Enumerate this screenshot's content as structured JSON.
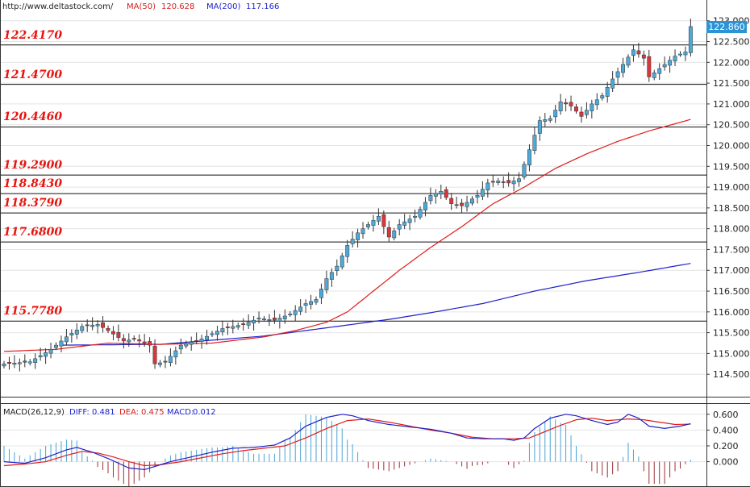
{
  "header": {
    "source": "http://www.deltastock.com/",
    "ma50_label": "MA(50)",
    "ma50_value": "120.628",
    "ma200_label": "MA(200)",
    "ma200_value": "117.166"
  },
  "macd_header": {
    "name": "MACD(26,12,9)",
    "diff_label": "DIFF:",
    "diff_value": "0.481",
    "dea_label": "DEA:",
    "dea_value": "0.475",
    "macd_label": "MACD:",
    "macd_value": "0.012"
  },
  "price_tag": "122.860",
  "colors": {
    "up": "#4ea9d8",
    "down": "#d9363b",
    "ma50": "#e01b1b",
    "ma200": "#1f22c8",
    "level_text": "#e8130f",
    "price_tag_bg": "#2b93d6"
  },
  "chart_data": [
    {
      "type": "candlestick",
      "title": "",
      "y_ticks": [
        "114.500",
        "115.000",
        "115.500",
        "116.000",
        "116.500",
        "117.000",
        "117.500",
        "118.000",
        "118.500",
        "119.000",
        "119.500",
        "120.000",
        "120.500",
        "121.000",
        "121.500",
        "122.000",
        "122.500",
        "123.000"
      ],
      "ylim": [
        114.0,
        123.15
      ],
      "levels": [
        {
          "value": 122.417,
          "label": "122.4170"
        },
        {
          "value": 121.47,
          "label": "121.4700"
        },
        {
          "value": 120.446,
          "label": "120.4460"
        },
        {
          "value": 119.29,
          "label": "119.2900"
        },
        {
          "value": 118.843,
          "label": "118.8430"
        },
        {
          "value": 118.379,
          "label": "118.3790"
        },
        {
          "value": 117.68,
          "label": "117.6800"
        },
        {
          "value": 115.778,
          "label": "115.7780"
        }
      ],
      "close_anchors": [
        [
          0,
          114.75
        ],
        [
          5,
          114.8
        ],
        [
          9,
          115.1
        ],
        [
          12,
          115.4
        ],
        [
          15,
          115.65
        ],
        [
          18,
          115.7
        ],
        [
          20,
          115.55
        ],
        [
          23,
          115.3
        ],
        [
          25,
          115.35
        ],
        [
          28,
          115.2
        ],
        [
          29,
          114.75
        ],
        [
          31,
          114.8
        ],
        [
          34,
          115.2
        ],
        [
          38,
          115.35
        ],
        [
          42,
          115.6
        ],
        [
          46,
          115.7
        ],
        [
          49,
          115.85
        ],
        [
          52,
          115.8
        ],
        [
          55,
          115.95
        ],
        [
          58,
          116.2
        ],
        [
          60,
          116.3
        ],
        [
          62,
          116.8
        ],
        [
          64,
          117.1
        ],
        [
          66,
          117.6
        ],
        [
          68,
          117.9
        ],
        [
          70,
          118.1
        ],
        [
          72,
          118.3
        ],
        [
          74,
          117.8
        ],
        [
          76,
          118.1
        ],
        [
          79,
          118.3
        ],
        [
          82,
          118.8
        ],
        [
          84,
          118.9
        ],
        [
          86,
          118.6
        ],
        [
          88,
          118.55
        ],
        [
          91,
          118.8
        ],
        [
          93,
          119.1
        ],
        [
          95,
          119.15
        ],
        [
          97,
          119.1
        ],
        [
          99,
          119.2
        ],
        [
          101,
          119.9
        ],
        [
          103,
          120.6
        ],
        [
          105,
          120.65
        ],
        [
          107,
          121.05
        ],
        [
          109,
          120.95
        ],
        [
          111,
          120.7
        ],
        [
          113,
          121.0
        ],
        [
          115,
          121.2
        ],
        [
          117,
          121.6
        ],
        [
          119,
          121.95
        ],
        [
          121,
          122.3
        ],
        [
          123,
          122.1
        ],
        [
          124,
          121.65
        ],
        [
          126,
          121.85
        ],
        [
          128,
          122.05
        ],
        [
          129,
          122.15
        ],
        [
          131,
          122.25
        ],
        [
          132,
          122.86
        ]
      ],
      "ma50_anchors": [
        [
          0,
          115.05
        ],
        [
          10,
          115.1
        ],
        [
          20,
          115.25
        ],
        [
          30,
          115.22
        ],
        [
          40,
          115.25
        ],
        [
          50,
          115.4
        ],
        [
          56,
          115.55
        ],
        [
          62,
          115.75
        ],
        [
          66,
          116.0
        ],
        [
          70,
          116.4
        ],
        [
          76,
          117.0
        ],
        [
          82,
          117.55
        ],
        [
          88,
          118.05
        ],
        [
          94,
          118.6
        ],
        [
          100,
          119.0
        ],
        [
          106,
          119.45
        ],
        [
          112,
          119.8
        ],
        [
          118,
          120.1
        ],
        [
          124,
          120.35
        ],
        [
          132,
          120.628
        ]
      ],
      "ma200_anchors": [
        [
          11,
          115.2
        ],
        [
          30,
          115.22
        ],
        [
          50,
          115.42
        ],
        [
          64,
          115.65
        ],
        [
          74,
          115.82
        ],
        [
          82,
          115.98
        ],
        [
          92,
          116.2
        ],
        [
          102,
          116.5
        ],
        [
          112,
          116.75
        ],
        [
          122,
          116.95
        ],
        [
          132,
          117.166
        ]
      ]
    },
    {
      "type": "macd",
      "title": "",
      "y_ticks": [
        "0.000",
        "0.200",
        "0.400",
        "0.600"
      ],
      "ylim": [
        -0.3,
        0.72
      ],
      "diff_anchors": [
        [
          0,
          0.0
        ],
        [
          4,
          -0.02
        ],
        [
          8,
          0.05
        ],
        [
          12,
          0.15
        ],
        [
          14,
          0.18
        ],
        [
          17,
          0.12
        ],
        [
          20,
          0.04
        ],
        [
          24,
          -0.08
        ],
        [
          27,
          -0.1
        ],
        [
          29,
          -0.06
        ],
        [
          32,
          0.0
        ],
        [
          36,
          0.06
        ],
        [
          40,
          0.12
        ],
        [
          44,
          0.17
        ],
        [
          48,
          0.18
        ],
        [
          52,
          0.21
        ],
        [
          55,
          0.3
        ],
        [
          58,
          0.45
        ],
        [
          62,
          0.56
        ],
        [
          65,
          0.6
        ],
        [
          67,
          0.58
        ],
        [
          70,
          0.52
        ],
        [
          74,
          0.47
        ],
        [
          78,
          0.44
        ],
        [
          82,
          0.41
        ],
        [
          86,
          0.36
        ],
        [
          89,
          0.3
        ],
        [
          92,
          0.29
        ],
        [
          96,
          0.29
        ],
        [
          98,
          0.27
        ],
        [
          100,
          0.3
        ],
        [
          102,
          0.42
        ],
        [
          105,
          0.55
        ],
        [
          108,
          0.6
        ],
        [
          110,
          0.58
        ],
        [
          113,
          0.52
        ],
        [
          116,
          0.47
        ],
        [
          118,
          0.5
        ],
        [
          120,
          0.6
        ],
        [
          122,
          0.55
        ],
        [
          124,
          0.45
        ],
        [
          127,
          0.42
        ],
        [
          130,
          0.45
        ],
        [
          132,
          0.481
        ]
      ],
      "dea_anchors": [
        [
          0,
          -0.05
        ],
        [
          4,
          -0.03
        ],
        [
          8,
          0.0
        ],
        [
          12,
          0.08
        ],
        [
          15,
          0.13
        ],
        [
          18,
          0.11
        ],
        [
          21,
          0.06
        ],
        [
          24,
          0.0
        ],
        [
          27,
          -0.05
        ],
        [
          30,
          -0.04
        ],
        [
          34,
          0.0
        ],
        [
          38,
          0.05
        ],
        [
          42,
          0.1
        ],
        [
          46,
          0.14
        ],
        [
          50,
          0.17
        ],
        [
          54,
          0.2
        ],
        [
          58,
          0.3
        ],
        [
          62,
          0.42
        ],
        [
          66,
          0.52
        ],
        [
          70,
          0.54
        ],
        [
          74,
          0.5
        ],
        [
          78,
          0.45
        ],
        [
          82,
          0.4
        ],
        [
          86,
          0.36
        ],
        [
          90,
          0.31
        ],
        [
          94,
          0.29
        ],
        [
          98,
          0.29
        ],
        [
          101,
          0.3
        ],
        [
          104,
          0.38
        ],
        [
          107,
          0.46
        ],
        [
          110,
          0.53
        ],
        [
          113,
          0.55
        ],
        [
          116,
          0.52
        ],
        [
          120,
          0.54
        ],
        [
          123,
          0.53
        ],
        [
          126,
          0.5
        ],
        [
          129,
          0.47
        ],
        [
          132,
          0.475
        ]
      ]
    }
  ]
}
